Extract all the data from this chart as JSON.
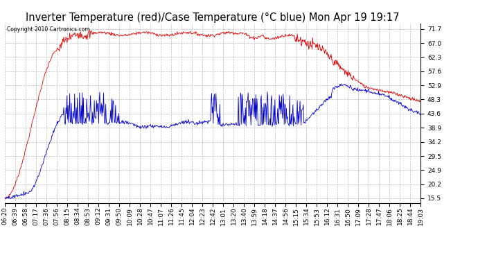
{
  "title": "Inverter Temperature (red)/Case Temperature (°C blue) Mon Apr 19 19:17",
  "copyright": "Copyright 2010 Cartronics.com",
  "yticks": [
    15.5,
    20.2,
    24.9,
    29.5,
    34.2,
    38.9,
    43.6,
    48.3,
    52.9,
    57.6,
    62.3,
    67.0,
    71.7
  ],
  "ylim": [
    14.0,
    73.5
  ],
  "xtick_labels": [
    "06:20",
    "06:39",
    "06:58",
    "07:17",
    "07:36",
    "07:56",
    "08:15",
    "08:34",
    "08:53",
    "09:12",
    "09:31",
    "09:50",
    "10:09",
    "10:28",
    "10:47",
    "11:07",
    "11:26",
    "11:45",
    "12:04",
    "12:23",
    "12:42",
    "13:01",
    "13:20",
    "13:40",
    "13:59",
    "14:18",
    "14:37",
    "14:56",
    "15:15",
    "15:34",
    "15:53",
    "16:12",
    "16:31",
    "16:50",
    "17:09",
    "17:28",
    "17:47",
    "18:06",
    "18:25",
    "18:44",
    "19:03"
  ],
  "background_color": "#ffffff",
  "grid_color": "#bbbbbb",
  "red_line_color": "#dd0000",
  "blue_line_color": "#0000cc",
  "title_fontsize": 10.5,
  "tick_fontsize": 6.5,
  "copyright_fontsize": 5.5
}
